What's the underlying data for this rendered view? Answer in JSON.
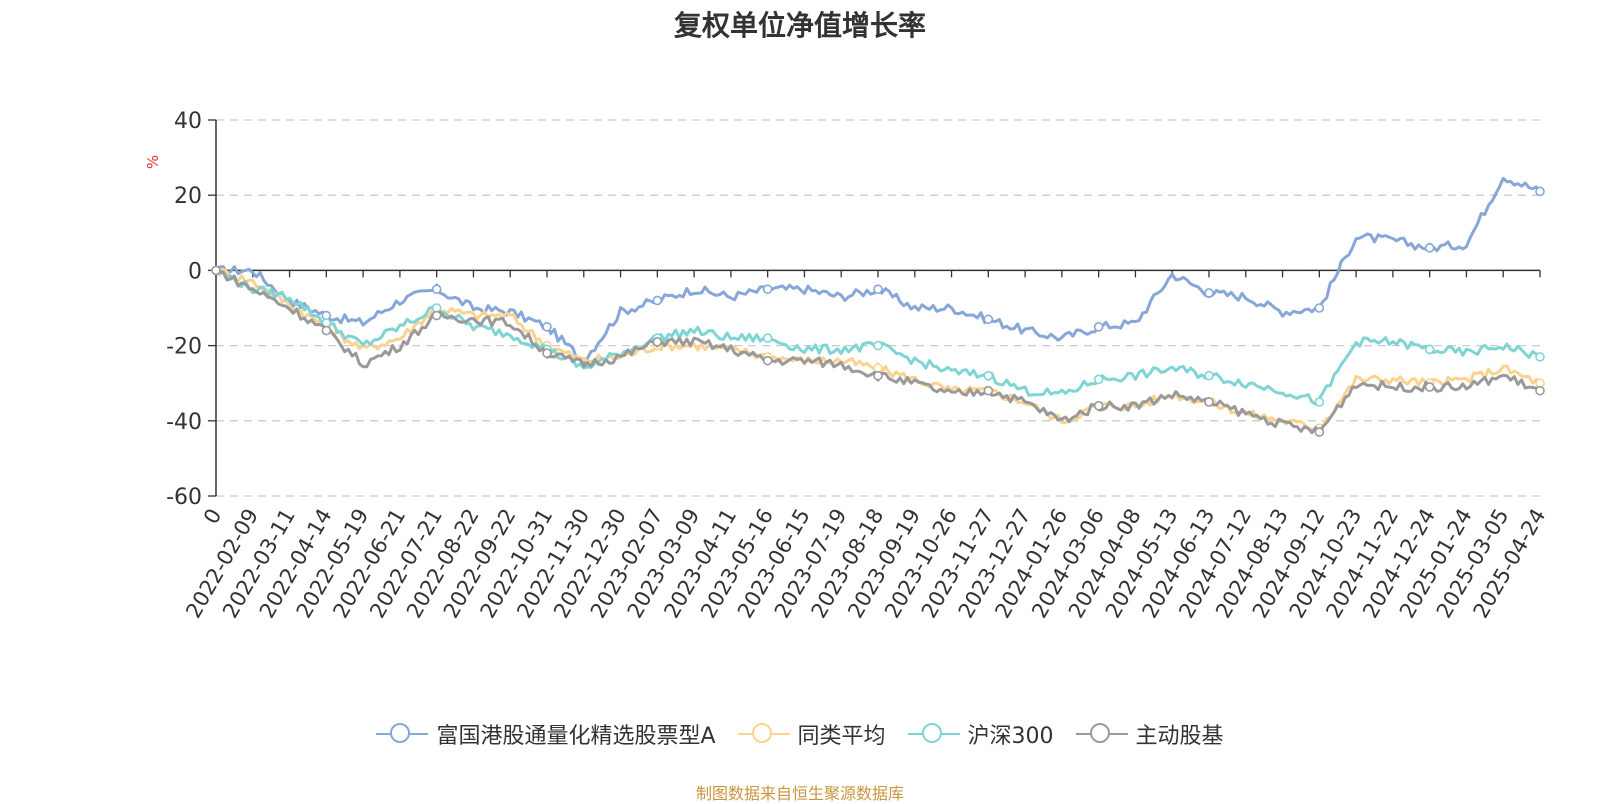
{
  "title": "复权单位净值增长率",
  "source_note": "制图数据来自恒生聚源数据库",
  "chart_data": {
    "type": "line",
    "title": "复权单位净值增长率",
    "ylabel": "%",
    "ylim": [
      -60,
      40
    ],
    "yticks": [
      40,
      20,
      0,
      -20,
      -40,
      -60
    ],
    "grid": true,
    "legend_position": "bottom",
    "x_tick_labels": [
      "0",
      "2022-02-09",
      "2022-03-11",
      "2022-04-14",
      "2022-05-19",
      "2022-06-21",
      "2022-07-21",
      "2022-08-22",
      "2022-09-22",
      "2022-10-31",
      "2022-11-30",
      "2022-12-30",
      "2023-02-07",
      "2023-03-09",
      "2023-04-11",
      "2023-05-16",
      "2023-06-15",
      "2023-07-19",
      "2023-08-18",
      "2023-09-19",
      "2023-10-26",
      "2023-11-27",
      "2023-12-27",
      "2024-01-26",
      "2024-03-06",
      "2024-04-08",
      "2024-05-13",
      "2024-06-13",
      "2024-07-12",
      "2024-08-13",
      "2024-09-12",
      "2024-10-23",
      "2024-11-22",
      "2024-12-24",
      "2025-01-24",
      "2025-03-05",
      "2025-04-24"
    ],
    "series": [
      {
        "name": "富国港股通量化精选股票型A",
        "color": "#87a7d8",
        "values": [
          0,
          0,
          -8,
          -12,
          -14,
          -8,
          -5,
          -10,
          -11,
          -15,
          -24,
          -11,
          -8,
          -5,
          -7,
          -5,
          -5,
          -7,
          -5,
          -10,
          -10,
          -13,
          -16,
          -18,
          -15,
          -14,
          -1,
          -6,
          -7,
          -11,
          -10,
          9,
          8,
          6,
          7,
          25,
          21
        ]
      },
      {
        "name": "同类平均",
        "color": "#fcd28f",
        "values": [
          0,
          -3,
          -9,
          -15,
          -21,
          -18,
          -10,
          -12,
          -12,
          -20,
          -24,
          -23,
          -20,
          -20,
          -21,
          -23,
          -24,
          -24,
          -26,
          -29,
          -32,
          -32,
          -35,
          -40,
          -36,
          -36,
          -33,
          -35,
          -38,
          -40,
          -42,
          -29,
          -29,
          -30,
          -29,
          -26,
          -30
        ]
      },
      {
        "name": "沪深300",
        "color": "#7fd4d4",
        "values": [
          0,
          -5,
          -7,
          -14,
          -20,
          -15,
          -10,
          -15,
          -17,
          -21,
          -26,
          -22,
          -18,
          -16,
          -18,
          -18,
          -21,
          -21,
          -20,
          -24,
          -27,
          -28,
          -32,
          -33,
          -29,
          -28,
          -26,
          -28,
          -30,
          -32,
          -35,
          -19,
          -19,
          -21,
          -22,
          -20,
          -23
        ]
      },
      {
        "name": "主动股基",
        "color": "#9a9a9a",
        "values": [
          0,
          -5,
          -10,
          -16,
          -25,
          -20,
          -12,
          -13,
          -14,
          -22,
          -25,
          -23,
          -19,
          -19,
          -21,
          -24,
          -24,
          -25,
          -28,
          -30,
          -33,
          -32,
          -35,
          -40,
          -36,
          -36,
          -33,
          -35,
          -38,
          -41,
          -43,
          -30,
          -31,
          -31,
          -31,
          -28,
          -32
        ]
      }
    ]
  }
}
